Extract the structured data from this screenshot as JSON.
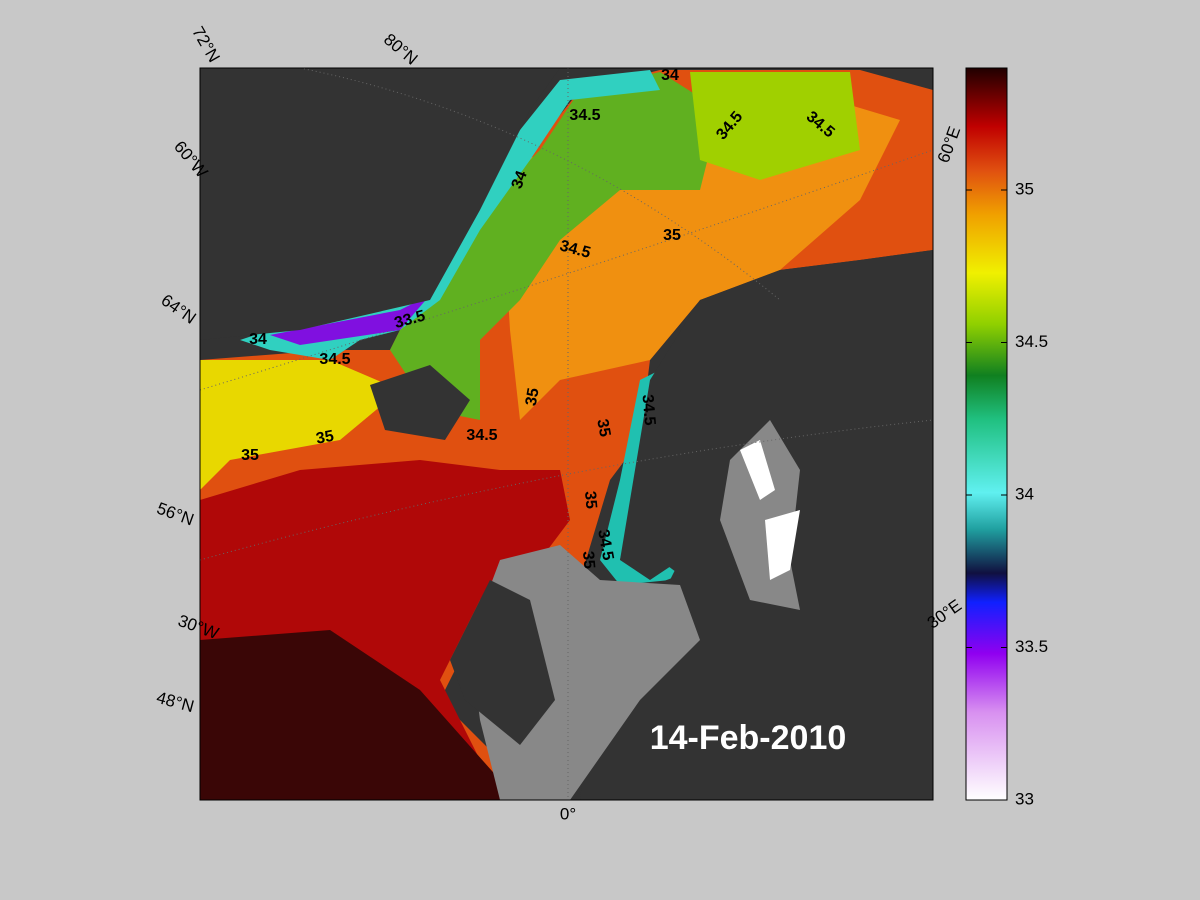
{
  "map": {
    "date": "14-Feb-2010",
    "graticule_labels": [
      "72°N",
      "80°N",
      "60°W",
      "64°N",
      "56°N",
      "30°W",
      "48°N",
      "0°",
      "60°E",
      "30°E"
    ],
    "contour_labels": [
      "34",
      "34.5",
      "34.5",
      "34.5",
      "34",
      "35",
      "34.5",
      "33.5",
      "34",
      "34.5",
      "35",
      "34.5",
      "35",
      "34.5",
      "35",
      "35",
      "35",
      "34.5",
      "35"
    ]
  },
  "colorbar": {
    "range": [
      33,
      35.4
    ],
    "ticks": [
      33,
      33.5,
      34,
      34.5,
      35
    ]
  }
}
